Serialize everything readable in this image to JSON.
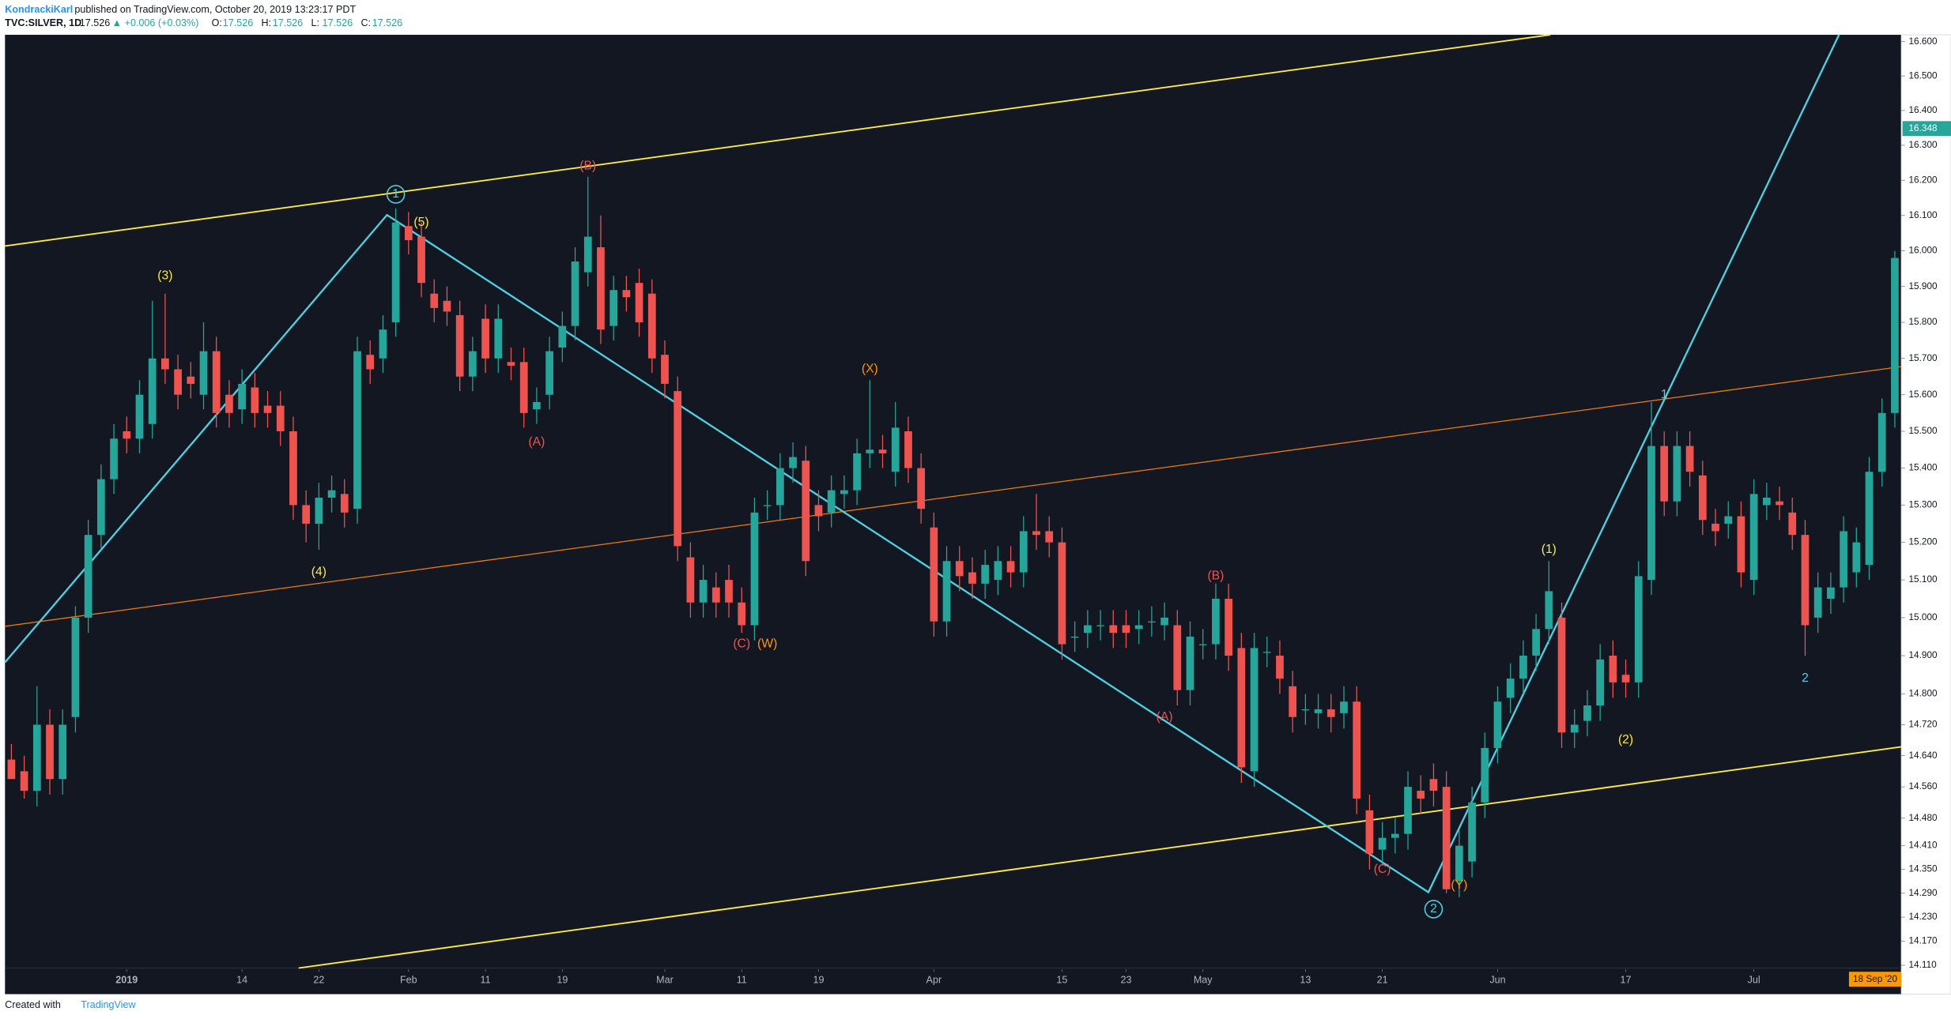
{
  "header": {
    "author": "KondrackiKarl",
    "published": "published on TradingView.com, October 20, 2019 13:23:17 PDT",
    "symbol": "TVC:SILVER, 1D",
    "last": "17.526",
    "change": "▲ +0.006 (+0.03%)",
    "quote": [
      {
        "label": "O:",
        "value": "17.526"
      },
      {
        "label": "H:",
        "value": "17.526"
      },
      {
        "label": "L:",
        "value": "17.526"
      },
      {
        "label": "C:",
        "value": "17.526"
      }
    ]
  },
  "footer": {
    "text": "Created with",
    "brand": "TradingView"
  },
  "chart_data": {
    "type": "candlestick",
    "log_scale": true,
    "grid": false,
    "up_color": "#26a69a",
    "down_color": "#ef5350",
    "xlim": [
      -0.5,
      147.5
    ],
    "xticks": [
      {
        "value": 9,
        "label": "2019"
      },
      {
        "value": 18,
        "label": "14"
      },
      {
        "value": 24,
        "label": "22"
      },
      {
        "value": 31,
        "label": "Feb"
      },
      {
        "value": 37,
        "label": "11"
      },
      {
        "value": 43,
        "label": "19"
      },
      {
        "value": 51,
        "label": "Mar"
      },
      {
        "value": 57,
        "label": "11"
      },
      {
        "value": 63,
        "label": "19"
      },
      {
        "value": 72,
        "label": "Apr"
      },
      {
        "value": 82,
        "label": "15"
      },
      {
        "value": 87,
        "label": "23"
      },
      {
        "value": 93,
        "label": "May"
      },
      {
        "value": 101,
        "label": "13"
      },
      {
        "value": 107,
        "label": "21"
      },
      {
        "value": 116,
        "label": "Jun"
      },
      {
        "value": 126,
        "label": "17"
      },
      {
        "value": 136,
        "label": "Jul"
      }
    ],
    "ylim": [
      14.1,
      16.62
    ],
    "yticks": [
      {
        "value": 16.6,
        "label": "16.600"
      },
      {
        "value": 16.5,
        "label": "16.500"
      },
      {
        "value": 16.4,
        "label": "16.400"
      },
      {
        "value": 16.3,
        "label": "16.300"
      },
      {
        "value": 16.2,
        "label": "16.200"
      },
      {
        "value": 16.1,
        "label": "16.100"
      },
      {
        "value": 16,
        "label": "16.000"
      },
      {
        "value": 15.9,
        "label": "15.900"
      },
      {
        "value": 15.8,
        "label": "15.800"
      },
      {
        "value": 15.7,
        "label": "15.700"
      },
      {
        "value": 15.6,
        "label": "15.600"
      },
      {
        "value": 15.5,
        "label": "15.500"
      },
      {
        "value": 15.4,
        "label": "15.400"
      },
      {
        "value": 15.3,
        "label": "15.300"
      },
      {
        "value": 15.2,
        "label": "15.200"
      },
      {
        "value": 15.1,
        "label": "15.100"
      },
      {
        "value": 15,
        "label": "15.000"
      },
      {
        "value": 14.9,
        "label": "14.900"
      },
      {
        "value": 14.8,
        "label": "14.800"
      },
      {
        "value": 14.72,
        "label": "14.720"
      },
      {
        "value": 14.64,
        "label": "14.640"
      },
      {
        "value": 14.56,
        "label": "14.560"
      },
      {
        "value": 14.48,
        "label": "14.480"
      },
      {
        "value": 14.41,
        "label": "14.410"
      },
      {
        "value": 14.35,
        "label": "14.350"
      },
      {
        "value": 14.29,
        "label": "14.290"
      },
      {
        "value": 14.23,
        "label": "14.230"
      },
      {
        "value": 14.17,
        "label": "14.170"
      },
      {
        "value": 14.11,
        "label": "14.110"
      }
    ],
    "price_marker": {
      "value": 16.348,
      "label": "16.348",
      "color": "#26a69a"
    },
    "crosshair_date": {
      "label": "18 Sep '20",
      "color": "#ff9800"
    },
    "open": [
      14.63,
      14.6,
      14.55,
      14.72,
      14.58,
      14.74,
      15,
      15.22,
      15.37,
      15.5,
      15.48,
      15.52,
      15.7,
      15.67,
      15.65,
      15.6,
      15.72,
      15.6,
      15.56,
      15.62,
      15.57,
      15.57,
      15.5,
      15.3,
      15.25,
      15.32,
      15.33,
      15.29,
      15.71,
      15.7,
      15.8,
      16.07,
      16.04,
      15.88,
      15.86,
      15.82,
      15.65,
      15.81,
      15.7,
      15.69,
      15.69,
      15.56,
      15.6,
      15.73,
      15.79,
      15.94,
      16.01,
      15.79,
      15.89,
      15.91,
      15.88,
      15.71,
      15.61,
      15.16,
      15.04,
      15.08,
      15.1,
      15.04,
      14.98,
      15.3,
      15.3,
      15.4,
      15.42,
      15.3,
      15.28,
      15.33,
      15.34,
      15.44,
      15.45,
      15.39,
      15.5,
      15.4,
      15.24,
      14.99,
      15.15,
      15.12,
      15.09,
      15.1,
      15.15,
      15.12,
      15.23,
      15.23,
      15.2,
      14.95,
      14.96,
      14.98,
      14.98,
      14.98,
      14.97,
      14.99,
      14.98,
      14.98,
      14.81,
      14.93,
      14.93,
      15.05,
      14.92,
      14.6,
      14.91,
      14.9,
      14.82,
      14.76,
      14.75,
      14.76,
      14.75,
      14.78,
      14.5,
      14.4,
      14.43,
      14.44,
      14.55,
      14.58,
      14.56,
      14.32,
      14.37,
      14.52,
      14.66,
      14.79,
      14.84,
      14.9,
      14.97,
      15,
      14.7,
      14.73,
      14.77,
      14.9,
      14.85,
      14.83,
      15.1,
      15.46,
      15.31,
      15.46,
      15.38,
      15.25,
      15.25,
      15.27,
      15.1,
      15.3,
      15.31,
      15.28,
      15.22,
      15,
      15.05,
      15.08,
      15.12,
      15.14,
      15.39,
      15.55
    ],
    "high": [
      14.67,
      14.64,
      14.82,
      14.76,
      14.76,
      15.03,
      15.26,
      15.41,
      15.52,
      15.54,
      15.64,
      15.86,
      15.88,
      15.71,
      15.69,
      15.8,
      15.76,
      15.64,
      15.67,
      15.66,
      15.61,
      15.61,
      15.54,
      15.34,
      15.36,
      15.38,
      15.37,
      15.76,
      15.75,
      15.82,
      16.12,
      16.11,
      16.08,
      15.92,
      15.9,
      15.86,
      15.76,
      15.85,
      15.85,
      15.73,
      15.73,
      15.62,
      15.76,
      15.83,
      16.01,
      16.21,
      16.1,
      15.93,
      15.93,
      15.95,
      15.92,
      15.75,
      15.65,
      15.2,
      15.14,
      15.12,
      15.14,
      15.08,
      15.32,
      15.34,
      15.44,
      15.47,
      15.46,
      15.34,
      15.38,
      15.38,
      15.48,
      15.64,
      15.49,
      15.58,
      15.54,
      15.44,
      15.28,
      15.19,
      15.19,
      15.16,
      15.18,
      15.19,
      15.19,
      15.27,
      15.33,
      15.27,
      15.24,
      14.99,
      15.02,
      15.02,
      15.02,
      15.02,
      15.02,
      15.03,
      15.04,
      15.02,
      14.99,
      14.97,
      15.09,
      15.09,
      14.96,
      14.96,
      14.95,
      14.94,
      14.86,
      14.8,
      14.8,
      14.8,
      14.82,
      14.82,
      14.54,
      14.47,
      14.48,
      14.6,
      14.59,
      14.62,
      14.6,
      14.45,
      14.56,
      14.7,
      14.82,
      14.88,
      14.94,
      15.01,
      15.15,
      15.04,
      14.76,
      14.81,
      14.93,
      14.94,
      14.89,
      15.15,
      15.58,
      15.5,
      15.5,
      15.5,
      15.42,
      15.29,
      15.31,
      15.31,
      15.37,
      15.36,
      15.35,
      15.32,
      15.26,
      15.12,
      15.12,
      15.27,
      15.24,
      15.43,
      15.59,
      16
    ],
    "low": [
      14.59,
      14.53,
      14.51,
      14.54,
      14.54,
      14.7,
      14.96,
      15.18,
      15.33,
      15.44,
      15.44,
      15.48,
      15.63,
      15.56,
      15.59,
      15.56,
      15.51,
      15.51,
      15.52,
      15.51,
      15.51,
      15.46,
      15.26,
      15.2,
      15.18,
      15.28,
      15.24,
      15.25,
      15.63,
      15.66,
      15.76,
      15.99,
      15.87,
      15.8,
      15.79,
      15.61,
      15.61,
      15.66,
      15.66,
      15.64,
      15.51,
      15.52,
      15.56,
      15.69,
      15.75,
      15.9,
      15.74,
      15.75,
      15.83,
      15.76,
      15.66,
      15.59,
      15.15,
      15,
      15,
      15,
      15,
      14.96,
      14.94,
      15.26,
      15.26,
      15.36,
      15.11,
      15.23,
      15.24,
      15.29,
      15.3,
      15.4,
      15.4,
      15.35,
      15.36,
      15.25,
      14.95,
      14.95,
      15.07,
      15.05,
      15.05,
      15.06,
      15.08,
      15.08,
      15.18,
      15.16,
      14.89,
      14.91,
      14.92,
      14.94,
      14.92,
      14.92,
      14.93,
      14.95,
      14.94,
      14.77,
      14.77,
      14.89,
      14.89,
      14.86,
      14.57,
      14.56,
      14.87,
      14.8,
      14.7,
      14.72,
      14.71,
      14.7,
      14.71,
      14.49,
      14.35,
      14.36,
      14.39,
      14.4,
      14.49,
      14.51,
      14.29,
      14.28,
      14.33,
      14.48,
      14.62,
      14.75,
      14.8,
      14.86,
      14.93,
      14.66,
      14.66,
      14.69,
      14.73,
      14.79,
      14.79,
      14.79,
      15.06,
      15.27,
      15.27,
      15.35,
      15.22,
      15.19,
      15.21,
      15.08,
      15.06,
      15.26,
      15.26,
      15.18,
      14.9,
      14.96,
      15.01,
      15.04,
      15.08,
      15.1,
      15.35,
      15.51
    ],
    "close": [
      14.58,
      14.55,
      14.72,
      14.58,
      14.72,
      15,
      15.22,
      15.37,
      15.48,
      15.48,
      15.6,
      15.7,
      15.67,
      15.6,
      15.63,
      15.72,
      15.55,
      15.55,
      15.63,
      15.55,
      15.55,
      15.5,
      15.3,
      15.25,
      15.32,
      15.34,
      15.28,
      15.72,
      15.67,
      15.78,
      16.08,
      16.03,
      15.91,
      15.84,
      15.83,
      15.65,
      15.72,
      15.7,
      15.81,
      15.68,
      15.55,
      15.58,
      15.72,
      15.79,
      15.97,
      16.04,
      15.78,
      15.89,
      15.87,
      15.8,
      15.7,
      15.63,
      15.19,
      15.04,
      15.1,
      15.04,
      15.04,
      14.98,
      15.28,
      15.3,
      15.4,
      15.43,
      15.15,
      15.27,
      15.34,
      15.34,
      15.44,
      15.45,
      15.44,
      15.51,
      15.4,
      15.29,
      14.99,
      15.15,
      15.11,
      15.09,
      15.14,
      15.15,
      15.12,
      15.23,
      15.22,
      15.2,
      14.93,
      14.95,
      14.98,
      14.98,
      14.96,
      14.96,
      14.98,
      14.99,
      15,
      14.81,
      14.95,
      14.93,
      15.05,
      14.9,
      14.61,
      14.92,
      14.91,
      14.84,
      14.74,
      14.76,
      14.76,
      14.74,
      14.78,
      14.53,
      14.39,
      14.43,
      14.44,
      14.56,
      14.53,
      14.55,
      14.3,
      14.41,
      14.52,
      14.66,
      14.78,
      14.84,
      14.9,
      14.97,
      15.07,
      14.7,
      14.72,
      14.77,
      14.89,
      14.83,
      14.83,
      15.11,
      15.46,
      15.31,
      15.46,
      15.39,
      15.26,
      15.23,
      15.27,
      15.12,
      15.33,
      15.32,
      15.3,
      15.22,
      14.98,
      15.08,
      15.08,
      15.23,
      15.2,
      15.39,
      15.55,
      15.98
    ],
    "annotations": [
      {
        "text": "(3)",
        "color": "#ffeb3b"
      },
      {
        "text": "(4)",
        "color": "#ffeb3b"
      },
      {
        "text": "(5)",
        "color": "#ffeb3b"
      },
      {
        "text": "1",
        "color": "#4dd0e1",
        "circled": true
      },
      {
        "text": "(B)",
        "color": "#ef5350"
      },
      {
        "text": "(A)",
        "color": "#ef5350"
      },
      {
        "text": "(C)",
        "color": "#ef5350"
      },
      {
        "text": "(W)",
        "color": "#ff9800"
      },
      {
        "text": "(X)",
        "color": "#ff9800"
      },
      {
        "text": "(B)",
        "color": "#ef5350"
      },
      {
        "text": "(A)",
        "color": "#ef5350"
      },
      {
        "text": "(C)",
        "color": "#ef5350"
      },
      {
        "text": "2",
        "color": "#4dd0e1",
        "circled": true
      },
      {
        "text": "(Y)",
        "color": "#ff9800"
      },
      {
        "text": "(1)",
        "color": "#ffeb3b"
      },
      {
        "text": "(2)",
        "color": "#ffeb3b"
      },
      {
        "text": "1",
        "color": "#4dd0e1"
      },
      {
        "text": "2",
        "color": "#4dd0e1"
      }
    ]
  }
}
